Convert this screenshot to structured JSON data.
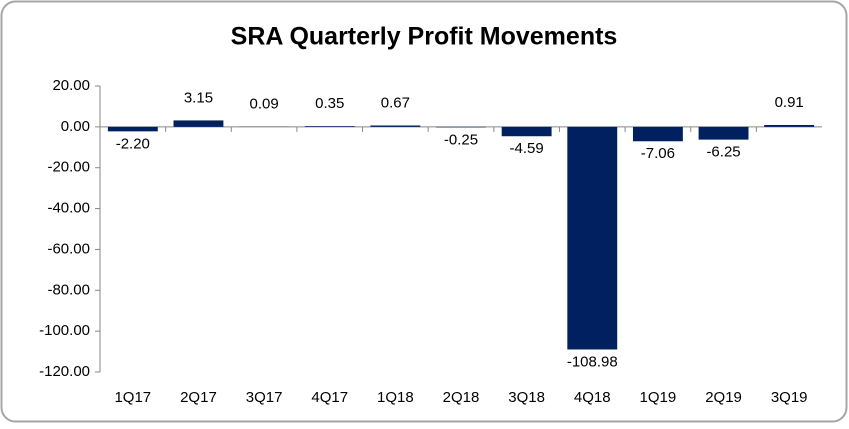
{
  "chart_data": {
    "type": "bar",
    "title": "SRA Quarterly Profit Movements",
    "categories": [
      "1Q17",
      "2Q17",
      "3Q17",
      "4Q17",
      "1Q18",
      "2Q18",
      "3Q18",
      "4Q18",
      "1Q19",
      "2Q19",
      "3Q19"
    ],
    "values": [
      -2.2,
      3.15,
      0.09,
      0.35,
      0.67,
      -0.25,
      -4.59,
      -108.98,
      -7.06,
      -6.25,
      0.91
    ],
    "value_labels": [
      "-2.20",
      "3.15",
      "0.09",
      "0.35",
      "0.67",
      "-0.25",
      "-4.59",
      "-108.98",
      "-7.06",
      "-6.25",
      "0.91"
    ],
    "color": "#002060",
    "ylim": [
      -120,
      20
    ],
    "yticks": [
      {
        "value": -120,
        "label": "-120.00"
      },
      {
        "value": -100,
        "label": "-100.00"
      },
      {
        "value": -80,
        "label": "-80.00"
      },
      {
        "value": -60,
        "label": "-60.00"
      },
      {
        "value": -40,
        "label": "-40.00"
      },
      {
        "value": -20,
        "label": "-20.00"
      },
      {
        "value": 0,
        "label": "0.00"
      },
      {
        "value": 20,
        "label": "20.00"
      }
    ],
    "grid": false
  }
}
